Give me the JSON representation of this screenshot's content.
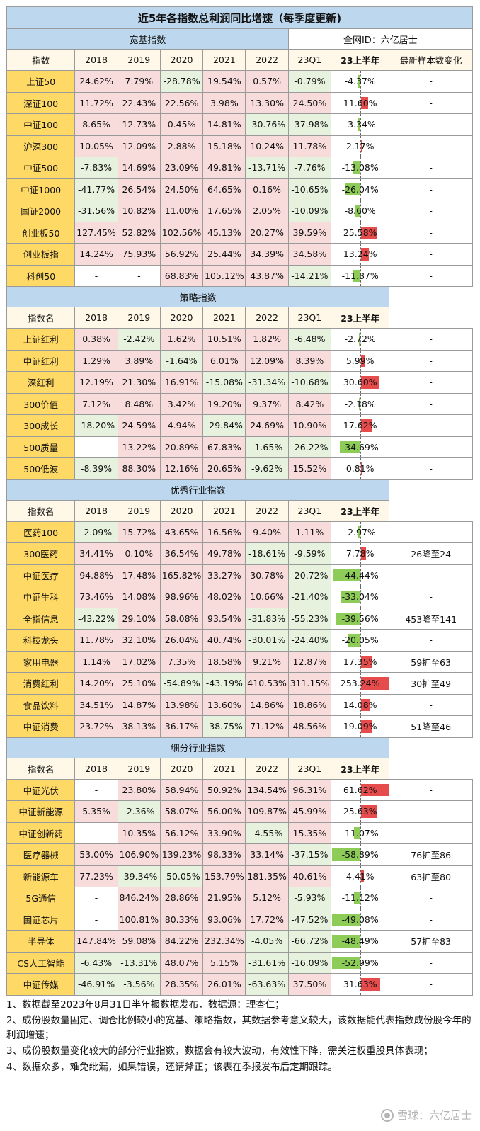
{
  "title": "近5年各指数总利润同比增速（每季度更新)",
  "author_id": "全网ID：六亿居士",
  "header_first": "指数",
  "header_first_alt": "指数名",
  "years": [
    "2018",
    "2019",
    "2020",
    "2021",
    "2022",
    "23Q1",
    "23上半年"
  ],
  "sample_header": "最新样本数变化",
  "sections": [
    {
      "name": "宽基指数",
      "first_header": "指数",
      "rows": [
        {
          "name": "上证50",
          "values": [
            "24.62%",
            "7.79%",
            "-28.78%",
            "19.54%",
            "0.57%",
            "-0.79%",
            "-4.37%"
          ],
          "h1": -4.37,
          "sample": "-"
        },
        {
          "name": "深证100",
          "values": [
            "11.72%",
            "22.43%",
            "22.56%",
            "3.98%",
            "13.30%",
            "24.50%",
            "11.60%"
          ],
          "h1": 11.6,
          "sample": "-"
        },
        {
          "name": "中证100",
          "values": [
            "8.65%",
            "12.73%",
            "0.45%",
            "14.81%",
            "-30.76%",
            "-37.98%",
            "-3.34%"
          ],
          "h1": -3.34,
          "sample": "-"
        },
        {
          "name": "沪深300",
          "values": [
            "10.05%",
            "12.09%",
            "2.88%",
            "15.18%",
            "10.24%",
            "11.78%",
            "2.17%"
          ],
          "h1": 2.17,
          "sample": "-"
        },
        {
          "name": "中证500",
          "values": [
            "-7.83%",
            "14.69%",
            "23.09%",
            "49.81%",
            "-13.71%",
            "-7.76%",
            "-13.08%"
          ],
          "h1": -13.08,
          "sample": "-"
        },
        {
          "name": "中证1000",
          "values": [
            "-41.77%",
            "26.54%",
            "24.50%",
            "64.65%",
            "0.16%",
            "-10.65%",
            "-26.04%"
          ],
          "h1": -26.04,
          "sample": "-"
        },
        {
          "name": "国证2000",
          "values": [
            "-31.56%",
            "10.82%",
            "11.00%",
            "17.65%",
            "2.05%",
            "-10.09%",
            "-8.60%"
          ],
          "h1": -8.6,
          "sample": "-"
        },
        {
          "name": "创业板50",
          "values": [
            "127.45%",
            "52.82%",
            "102.56%",
            "45.13%",
            "20.27%",
            "39.59%",
            "25.58%"
          ],
          "h1": 25.58,
          "sample": "-"
        },
        {
          "name": "创业板指",
          "values": [
            "14.24%",
            "75.93%",
            "56.92%",
            "25.44%",
            "34.39%",
            "34.58%",
            "13.24%"
          ],
          "h1": 13.24,
          "sample": "-"
        },
        {
          "name": "科创50",
          "values": [
            "-",
            "-",
            "68.83%",
            "105.12%",
            "43.87%",
            "-14.21%",
            "-11.87%"
          ],
          "h1": -11.87,
          "sample": "-"
        }
      ]
    },
    {
      "name": "策略指数",
      "first_header": "指数名",
      "rows": [
        {
          "name": "上证红利",
          "values": [
            "0.38%",
            "-2.42%",
            "1.62%",
            "10.51%",
            "1.82%",
            "-6.48%",
            "-2.72%"
          ],
          "h1": -2.72,
          "sample": "-"
        },
        {
          "name": "中证红利",
          "values": [
            "1.29%",
            "3.89%",
            "-1.64%",
            "6.01%",
            "12.09%",
            "8.39%",
            "5.99%"
          ],
          "h1": 5.99,
          "sample": "-"
        },
        {
          "name": "深红利",
          "values": [
            "12.19%",
            "21.30%",
            "16.91%",
            "-15.08%",
            "-31.34%",
            "-10.68%",
            "30.60%"
          ],
          "h1": 30.6,
          "sample": "-"
        },
        {
          "name": "300价值",
          "values": [
            "7.12%",
            "8.48%",
            "3.42%",
            "19.20%",
            "9.37%",
            "8.42%",
            "-2.18%"
          ],
          "h1": -2.18,
          "sample": "-"
        },
        {
          "name": "300成长",
          "values": [
            "-18.20%",
            "24.59%",
            "4.94%",
            "-29.84%",
            "24.69%",
            "10.90%",
            "17.62%"
          ],
          "h1": 17.62,
          "sample": "-"
        },
        {
          "name": "500质量",
          "values": [
            "-",
            "13.22%",
            "20.89%",
            "67.83%",
            "-1.65%",
            "-26.22%",
            "-34.69%"
          ],
          "h1": -34.69,
          "sample": "-"
        },
        {
          "name": "500低波",
          "values": [
            "-8.39%",
            "88.30%",
            "12.16%",
            "20.65%",
            "-9.62%",
            "15.52%",
            "0.81%"
          ],
          "h1": 0.81,
          "sample": "-"
        }
      ]
    },
    {
      "name": "优秀行业指数",
      "first_header": "指数名",
      "rows": [
        {
          "name": "医药100",
          "values": [
            "-2.09%",
            "15.72%",
            "43.65%",
            "16.56%",
            "9.40%",
            "1.11%",
            "-2.97%"
          ],
          "h1": -2.97,
          "sample": "-"
        },
        {
          "name": "300医药",
          "values": [
            "34.41%",
            "0.10%",
            "36.54%",
            "49.78%",
            "-18.61%",
            "-9.59%",
            "7.78%"
          ],
          "h1": 7.78,
          "sample": "26降至24"
        },
        {
          "name": "中证医疗",
          "values": [
            "94.88%",
            "17.48%",
            "165.82%",
            "33.27%",
            "30.78%",
            "-20.72%",
            "-44.44%"
          ],
          "h1": -44.44,
          "sample": "-"
        },
        {
          "name": "中证生科",
          "values": [
            "73.46%",
            "14.08%",
            "98.96%",
            "48.02%",
            "10.66%",
            "-21.40%",
            "-33.04%"
          ],
          "h1": -33.04,
          "sample": "-"
        },
        {
          "name": "全指信息",
          "values": [
            "-43.22%",
            "29.10%",
            "58.08%",
            "93.54%",
            "-31.83%",
            "-55.23%",
            "-39.56%"
          ],
          "h1": -39.56,
          "sample": "453降至141"
        },
        {
          "name": "科技龙头",
          "values": [
            "11.78%",
            "32.10%",
            "26.04%",
            "40.74%",
            "-30.01%",
            "-24.40%",
            "-20.05%"
          ],
          "h1": -20.05,
          "sample": "-"
        },
        {
          "name": "家用电器",
          "values": [
            "1.14%",
            "17.02%",
            "7.35%",
            "18.58%",
            "9.21%",
            "12.87%",
            "17.35%"
          ],
          "h1": 17.35,
          "sample": "59扩至63"
        },
        {
          "name": "消费红利",
          "values": [
            "14.20%",
            "25.10%",
            "-54.89%",
            "-43.19%",
            "410.53%",
            "311.15%",
            "253.24%"
          ],
          "h1": 253.24,
          "sample": "30扩至49"
        },
        {
          "name": "食品饮料",
          "values": [
            "34.51%",
            "14.87%",
            "13.98%",
            "13.60%",
            "14.86%",
            "18.86%",
            "14.08%"
          ],
          "h1": 14.08,
          "sample": "-"
        },
        {
          "name": "中证消费",
          "values": [
            "23.72%",
            "38.13%",
            "36.17%",
            "-38.75%",
            "71.12%",
            "48.56%",
            "19.09%"
          ],
          "h1": 19.09,
          "sample": "51降至46"
        }
      ]
    },
    {
      "name": "细分行业指数",
      "first_header": "指数名",
      "rows": [
        {
          "name": "中证光伏",
          "values": [
            "-",
            "23.80%",
            "58.94%",
            "50.92%",
            "134.54%",
            "96.31%",
            "61.62%"
          ],
          "h1": 61.62,
          "sample": "-"
        },
        {
          "name": "中证新能源",
          "values": [
            "5.35%",
            "-2.36%",
            "58.07%",
            "56.00%",
            "109.87%",
            "45.99%",
            "25.63%"
          ],
          "h1": 25.63,
          "sample": "-"
        },
        {
          "name": "中证创新药",
          "values": [
            "-",
            "10.35%",
            "56.12%",
            "33.90%",
            "-4.55%",
            "15.35%",
            "-11.07%"
          ],
          "h1": -11.07,
          "sample": "-"
        },
        {
          "name": "医疗器械",
          "values": [
            "53.00%",
            "106.90%",
            "139.23%",
            "98.33%",
            "33.14%",
            "-37.15%",
            "-58.89%"
          ],
          "h1": -58.89,
          "sample": "76扩至86"
        },
        {
          "name": "新能源车",
          "values": [
            "77.23%",
            "-39.34%",
            "-50.05%",
            "153.79%",
            "181.35%",
            "40.61%",
            "4.41%"
          ],
          "h1": 4.41,
          "sample": "63扩至80"
        },
        {
          "name": "5G通信",
          "values": [
            "-",
            "846.24%",
            "28.86%",
            "21.95%",
            "5.12%",
            "-5.93%",
            "-11.12%"
          ],
          "h1": -11.12,
          "sample": "-"
        },
        {
          "name": "国证芯片",
          "values": [
            "-",
            "100.81%",
            "80.33%",
            "93.06%",
            "17.72%",
            "-47.52%",
            "-49.08%"
          ],
          "h1": -49.08,
          "sample": "-"
        },
        {
          "name": "半导体",
          "values": [
            "147.84%",
            "59.08%",
            "84.22%",
            "232.34%",
            "-4.05%",
            "-66.72%",
            "-48.49%"
          ],
          "h1": -48.49,
          "sample": "57扩至83"
        },
        {
          "name": "CS人工智能",
          "values": [
            "-6.43%",
            "-13.31%",
            "48.07%",
            "5.15%",
            "-31.61%",
            "-16.09%",
            "-52.99%"
          ],
          "h1": -52.99,
          "sample": "-"
        },
        {
          "name": "中证传媒",
          "values": [
            "-46.91%",
            "-3.56%",
            "28.35%",
            "26.01%",
            "-63.63%",
            "37.50%",
            "31.63%"
          ],
          "h1": 31.63,
          "sample": "-"
        }
      ]
    }
  ],
  "notes": [
    "1、数据截至2023年8月31日半年报数据发布，数据源：理杏仁；",
    "2、成份股数量固定、调仓比例较小的宽基、策略指数，其数据参考意义较大，该数据能代表指数成份股今年的利润增速；",
    "3、成份股数量变化较大的部分行业指数，数据会有较大波动，有效性下降，需关注权重股具体表现；",
    "4、数据众多，难免纰漏，如果错误，还请斧正；该表在季报发布后定期跟踪。"
  ],
  "watermark": "雪球：六亿居士",
  "colors": {
    "title_bg": "#bdd7ee",
    "name_bg": "#ffd966",
    "positive_bg": "#f8dcdc",
    "negative_bg": "#e6f1de",
    "bar_positive": "#e74c4c",
    "bar_negative": "#8dcc57"
  }
}
